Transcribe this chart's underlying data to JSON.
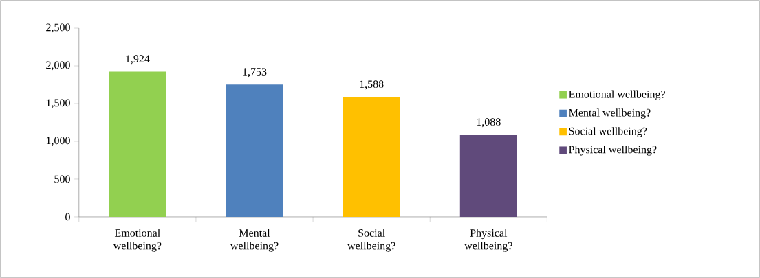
{
  "chart_data": {
    "type": "bar",
    "categories": [
      "Emotional wellbeing?",
      "Mental wellbeing?",
      "Social wellbeing?",
      "Physical wellbeing?"
    ],
    "series": [
      {
        "name": "Emotional wellbeing?",
        "color": "#92d050",
        "values": [
          1924,
          null,
          null,
          null
        ],
        "value_labels": [
          "1,924",
          null,
          null,
          null
        ]
      },
      {
        "name": "Mental wellbeing?",
        "color": "#4f81bd",
        "values": [
          null,
          1753,
          null,
          null
        ],
        "value_labels": [
          null,
          "1,753",
          null,
          null
        ]
      },
      {
        "name": "Social wellbeing?",
        "color": "#ffc000",
        "values": [
          null,
          null,
          1588,
          null
        ],
        "value_labels": [
          null,
          null,
          "1,588",
          null
        ]
      },
      {
        "name": "Physical wellbeing?",
        "color": "#604a7b",
        "values": [
          null,
          null,
          null,
          1088
        ],
        "value_labels": [
          null,
          null,
          null,
          "1,088"
        ]
      }
    ],
    "ylim": [
      0,
      2500
    ],
    "yticks": [
      {
        "value": 0,
        "label": "0"
      },
      {
        "value": 500,
        "label": "500"
      },
      {
        "value": 1000,
        "label": "1,000"
      },
      {
        "value": 1500,
        "label": "1,500"
      },
      {
        "value": 2000,
        "label": "2,000"
      },
      {
        "value": 2500,
        "label": "2,500"
      }
    ],
    "grid": false,
    "legend": "right"
  }
}
